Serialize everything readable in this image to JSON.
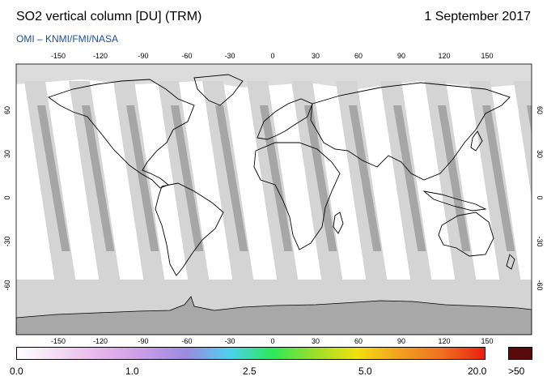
{
  "header": {
    "title": "SO2 vertical column [DU] (TRM)",
    "date": "1 September 2017",
    "credit": "OMI  –  KNMI/FMI/NASA"
  },
  "map": {
    "lon_ticks": [
      "-150",
      "-120",
      "-90",
      "-60",
      "-30",
      "0",
      "30",
      "60",
      "90",
      "120",
      "150"
    ],
    "lat_ticks": [
      "60",
      "30",
      "0",
      "-30",
      "-60"
    ],
    "colors": {
      "background": "#ffffff",
      "orbit_swath": "#d4d4d4",
      "orbit_dark": "#a6a6a6",
      "antarctica": "#a8a8a8",
      "coastline": "#000000"
    }
  },
  "colorbar": {
    "labels": [
      "0.0",
      "1.0",
      "2.5",
      "5.0",
      "20.0",
      ">50"
    ],
    "stops": [
      "#ffffff",
      "#f3d9f3",
      "#e7b3ea",
      "#c89ce6",
      "#9a8be0",
      "#4fd0f0",
      "#2be85a",
      "#9ae02a",
      "#f2e010",
      "#f2a020",
      "#f07020",
      "#e82010"
    ],
    "over_color": "#5a0a0a"
  }
}
